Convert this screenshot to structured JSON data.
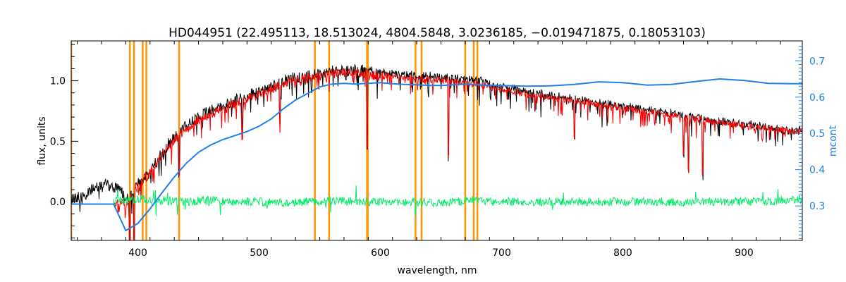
{
  "chart_data": {
    "type": "line",
    "title": "HD044951    (22.495113, 18.513024, 4804.5848, 3.0236185, −0.019471875, 0.18053103)",
    "xlabel": "wavelength, nm",
    "ylabel": "flux, units",
    "y2label": "mcont",
    "xlim": [
      345,
      948
    ],
    "ylim": [
      -0.32,
      1.33
    ],
    "y2lim": [
      0.205,
      0.755
    ],
    "x_ticks": [
      400,
      500,
      600,
      700,
      800,
      900
    ],
    "y_ticks": [
      0.0,
      0.5,
      1.0
    ],
    "y_tick_labels": [
      "0.0",
      "0.5",
      "1.0"
    ],
    "y2_ticks": [
      0.3,
      0.4,
      0.5,
      0.6,
      0.7
    ],
    "y2_tick_labels": [
      "0.3",
      "0.4",
      "0.5",
      "0.6",
      "0.7"
    ],
    "vlines": [
      345,
      393.4,
      396.8,
      404,
      407,
      434,
      546,
      557.7,
      589,
      589.6,
      629,
      634,
      670,
      677,
      680
    ],
    "series": [
      {
        "role": "observed",
        "color": "#000000",
        "x": [
          345,
          360,
          375,
          385,
          392,
          400,
          410,
          420,
          430,
          440,
          450,
          460,
          470,
          480,
          490,
          500,
          510,
          520,
          530,
          540,
          550,
          560,
          570,
          580,
          590,
          600,
          610,
          620,
          630,
          640,
          650,
          660,
          670,
          680,
          690,
          700,
          720,
          740,
          760,
          780,
          800,
          820,
          840,
          860,
          880,
          900,
          920,
          940,
          948
        ],
        "y": [
          0.07,
          0.13,
          0.2,
          0.15,
          0.06,
          0.2,
          0.3,
          0.45,
          0.58,
          0.67,
          0.74,
          0.8,
          0.84,
          0.88,
          0.92,
          0.96,
          1.0,
          1.04,
          1.07,
          1.09,
          1.11,
          1.13,
          1.14,
          1.13,
          1.12,
          1.1,
          1.09,
          1.08,
          1.07,
          1.07,
          1.06,
          1.05,
          1.04,
          1.03,
          1.01,
          0.98,
          0.95,
          0.91,
          0.88,
          0.85,
          0.82,
          0.79,
          0.76,
          0.73,
          0.7,
          0.67,
          0.64,
          0.62,
          0.62
        ]
      },
      {
        "role": "model",
        "color": "#ff0000",
        "x": [
          380,
          392,
          400,
          410,
          420,
          430,
          440,
          450,
          460,
          470,
          480,
          490,
          500,
          510,
          520,
          530,
          540,
          550,
          560,
          570,
          580,
          590,
          600,
          610,
          620,
          630,
          640,
          650,
          660,
          670,
          680,
          690,
          700,
          720,
          740,
          760,
          780,
          800,
          820,
          840,
          860,
          880,
          900,
          920,
          940,
          948
        ],
        "y": [
          0.03,
          0.04,
          0.17,
          0.28,
          0.42,
          0.55,
          0.64,
          0.71,
          0.77,
          0.81,
          0.85,
          0.89,
          0.93,
          0.97,
          1.01,
          1.04,
          1.06,
          1.08,
          1.1,
          1.11,
          1.1,
          1.09,
          1.07,
          1.06,
          1.05,
          1.04,
          1.04,
          1.03,
          1.02,
          1.01,
          1.0,
          0.98,
          0.95,
          0.92,
          0.89,
          0.86,
          0.83,
          0.8,
          0.77,
          0.74,
          0.71,
          0.68,
          0.65,
          0.63,
          0.61,
          0.61
        ]
      },
      {
        "role": "residual",
        "color": "#00ee66",
        "x": [
          380,
          400,
          420,
          440,
          460,
          480,
          500,
          520,
          540,
          560,
          580,
          600,
          620,
          640,
          660,
          680,
          700,
          720,
          740,
          760,
          780,
          800,
          820,
          840,
          860,
          880,
          900,
          920,
          940,
          948
        ],
        "y": [
          0.0,
          0.02,
          0.01,
          0.0,
          0.01,
          0.0,
          0.0,
          -0.01,
          0.0,
          0.01,
          0.0,
          0.0,
          0.0,
          -0.01,
          0.0,
          0.01,
          0.0,
          0.0,
          0.0,
          0.0,
          0.0,
          0.0,
          0.0,
          0.0,
          0.0,
          0.0,
          0.0,
          0.0,
          0.02,
          0.02
        ]
      },
      {
        "role": "mcont",
        "axis": "right",
        "color": "#1e82e6",
        "x": [
          345,
          380,
          390,
          400,
          410,
          420,
          430,
          440,
          450,
          460,
          470,
          480,
          490,
          500,
          510,
          520,
          530,
          540,
          550,
          560,
          570,
          580,
          590,
          600,
          610,
          620,
          630,
          640,
          650,
          660,
          670,
          680,
          690,
          700,
          720,
          740,
          760,
          780,
          800,
          820,
          840,
          860,
          880,
          900,
          920,
          940,
          948
        ],
        "y": [
          0.305,
          0.305,
          0.232,
          0.252,
          0.292,
          0.337,
          0.38,
          0.418,
          0.448,
          0.468,
          0.483,
          0.494,
          0.505,
          0.52,
          0.54,
          0.568,
          0.592,
          0.61,
          0.628,
          0.636,
          0.638,
          0.636,
          0.638,
          0.64,
          0.637,
          0.635,
          0.634,
          0.632,
          0.632,
          0.634,
          0.636,
          0.634,
          0.632,
          0.632,
          0.63,
          0.631,
          0.635,
          0.642,
          0.64,
          0.633,
          0.635,
          0.643,
          0.65,
          0.646,
          0.638,
          0.637,
          0.637
        ]
      }
    ]
  }
}
